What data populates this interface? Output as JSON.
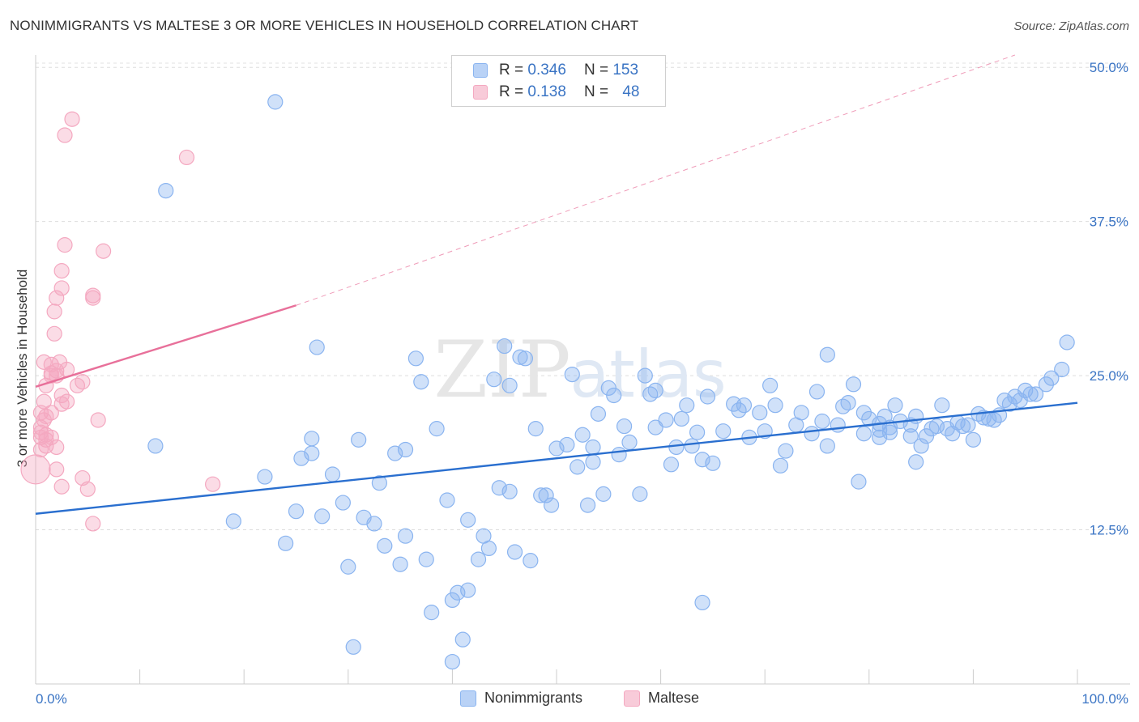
{
  "title": "NONIMMIGRANTS VS MALTESE 3 OR MORE VEHICLES IN HOUSEHOLD CORRELATION CHART",
  "source": "Source: ZipAtlas.com",
  "watermark": {
    "zip": "ZIP",
    "atlas": "atlas"
  },
  "legend": {
    "r_label": "R =",
    "n_label": "N =",
    "series": [
      {
        "name": "Nonimmigrants",
        "r": "0.346",
        "n": "153",
        "color": "#8ab4f0",
        "line_color": "#2a6fcf"
      },
      {
        "name": "Maltese",
        "r": "0.138",
        "n": "48",
        "color": "#f4a8c0",
        "line_color": "#e8709a"
      }
    ]
  },
  "chart_data": {
    "type": "scatter",
    "title": "NONIMMIGRANTS VS MALTESE 3 OR MORE VEHICLES IN HOUSEHOLD CORRELATION CHART",
    "xlabel": "",
    "ylabel": "3 or more Vehicles in Household",
    "xlim": [
      0,
      100
    ],
    "ylim": [
      0,
      51
    ],
    "x_tick_labels": [
      "0.0%",
      "100.0%"
    ],
    "y_ticks": [
      12.5,
      25.0,
      37.5,
      50.0
    ],
    "y_tick_labels": [
      "12.5%",
      "25.0%",
      "37.5%",
      "50.0%"
    ],
    "grid": true,
    "legend_position": "top-center",
    "series": [
      {
        "name": "Nonimmigrants",
        "trend": {
          "x": [
            0,
            100
          ],
          "y": [
            13.8,
            22.8
          ],
          "dashed": false
        },
        "points": [
          [
            23.0,
            47.2
          ],
          [
            12.5,
            40.0
          ],
          [
            11.5,
            19.3
          ],
          [
            19.0,
            13.2
          ],
          [
            22.0,
            16.8
          ],
          [
            24.0,
            11.4
          ],
          [
            25.0,
            14.0
          ],
          [
            25.5,
            18.3
          ],
          [
            26.5,
            18.7
          ],
          [
            26.5,
            19.9
          ],
          [
            27.0,
            27.3
          ],
          [
            27.5,
            13.6
          ],
          [
            28.5,
            17.0
          ],
          [
            29.5,
            14.7
          ],
          [
            30.0,
            9.5
          ],
          [
            30.5,
            3.0
          ],
          [
            31.0,
            19.8
          ],
          [
            31.5,
            13.5
          ],
          [
            32.5,
            13.0
          ],
          [
            33.0,
            16.3
          ],
          [
            33.5,
            11.2
          ],
          [
            34.5,
            18.7
          ],
          [
            35.0,
            9.7
          ],
          [
            35.5,
            19.0
          ],
          [
            35.5,
            12.0
          ],
          [
            36.5,
            26.4
          ],
          [
            37.0,
            24.5
          ],
          [
            37.5,
            10.1
          ],
          [
            38.0,
            5.8
          ],
          [
            38.5,
            20.7
          ],
          [
            39.5,
            14.9
          ],
          [
            40.0,
            6.8
          ],
          [
            40.5,
            7.4
          ],
          [
            41.0,
            3.6
          ],
          [
            41.5,
            13.3
          ],
          [
            41.5,
            7.6
          ],
          [
            40.0,
            1.8
          ],
          [
            42.5,
            10.1
          ],
          [
            43.0,
            12.0
          ],
          [
            43.5,
            11.0
          ],
          [
            44.0,
            24.7
          ],
          [
            44.5,
            15.9
          ],
          [
            45.0,
            27.4
          ],
          [
            45.5,
            15.6
          ],
          [
            45.5,
            24.2
          ],
          [
            46.0,
            10.7
          ],
          [
            46.5,
            26.5
          ],
          [
            47.0,
            26.4
          ],
          [
            47.5,
            10.0
          ],
          [
            48.0,
            20.7
          ],
          [
            48.5,
            15.3
          ],
          [
            49.0,
            15.3
          ],
          [
            49.5,
            14.5
          ],
          [
            50.0,
            19.1
          ],
          [
            51.0,
            19.4
          ],
          [
            51.5,
            25.1
          ],
          [
            52.0,
            17.6
          ],
          [
            52.5,
            20.2
          ],
          [
            53.0,
            14.5
          ],
          [
            53.5,
            19.2
          ],
          [
            53.5,
            18.0
          ],
          [
            54.0,
            21.9
          ],
          [
            54.5,
            15.4
          ],
          [
            55.0,
            24.0
          ],
          [
            55.5,
            23.4
          ],
          [
            56.0,
            18.6
          ],
          [
            56.5,
            20.9
          ],
          [
            57.0,
            19.6
          ],
          [
            58.0,
            15.4
          ],
          [
            58.5,
            25.0
          ],
          [
            59.0,
            23.5
          ],
          [
            59.5,
            20.8
          ],
          [
            59.5,
            23.8
          ],
          [
            60.5,
            21.4
          ],
          [
            61.0,
            17.8
          ],
          [
            61.5,
            19.2
          ],
          [
            62.0,
            21.5
          ],
          [
            62.5,
            22.6
          ],
          [
            63.0,
            19.3
          ],
          [
            63.5,
            20.4
          ],
          [
            64.0,
            18.2
          ],
          [
            64.5,
            23.3
          ],
          [
            64.0,
            6.6
          ],
          [
            65.0,
            17.9
          ],
          [
            66.0,
            20.5
          ],
          [
            67.0,
            22.7
          ],
          [
            67.5,
            22.2
          ],
          [
            68.0,
            22.6
          ],
          [
            68.5,
            20.0
          ],
          [
            69.5,
            22.0
          ],
          [
            70.0,
            20.5
          ],
          [
            70.5,
            24.2
          ],
          [
            71.0,
            22.6
          ],
          [
            71.5,
            17.7
          ],
          [
            72.0,
            18.9
          ],
          [
            73.0,
            21.0
          ],
          [
            73.5,
            22.0
          ],
          [
            74.5,
            20.3
          ],
          [
            75.0,
            23.7
          ],
          [
            75.5,
            21.3
          ],
          [
            76.0,
            19.3
          ],
          [
            76.0,
            26.7
          ],
          [
            77.0,
            21.0
          ],
          [
            77.5,
            22.5
          ],
          [
            78.0,
            22.8
          ],
          [
            78.5,
            24.3
          ],
          [
            79.0,
            16.4
          ],
          [
            79.5,
            22.0
          ],
          [
            79.5,
            20.3
          ],
          [
            80.0,
            21.5
          ],
          [
            81.0,
            20.6
          ],
          [
            81.0,
            20.0
          ],
          [
            81.5,
            21.7
          ],
          [
            82.0,
            20.8
          ],
          [
            82.5,
            22.6
          ],
          [
            83.0,
            21.3
          ],
          [
            84.0,
            20.1
          ],
          [
            84.5,
            21.7
          ],
          [
            84.5,
            18.0
          ],
          [
            85.0,
            19.3
          ],
          [
            85.5,
            20.1
          ],
          [
            86.0,
            20.7
          ],
          [
            86.5,
            20.9
          ],
          [
            87.0,
            22.6
          ],
          [
            87.5,
            20.7
          ],
          [
            88.0,
            20.3
          ],
          [
            88.5,
            21.2
          ],
          [
            89.0,
            20.9
          ],
          [
            89.5,
            21.0
          ],
          [
            90.0,
            19.8
          ],
          [
            90.5,
            21.9
          ],
          [
            91.0,
            21.6
          ],
          [
            91.5,
            21.5
          ],
          [
            92.0,
            21.4
          ],
          [
            92.5,
            21.8
          ],
          [
            93.0,
            23.0
          ],
          [
            93.5,
            22.7
          ],
          [
            94.0,
            23.3
          ],
          [
            94.5,
            23.0
          ],
          [
            95.0,
            23.8
          ],
          [
            95.5,
            23.5
          ],
          [
            96.0,
            23.5
          ],
          [
            97.0,
            24.3
          ],
          [
            97.5,
            24.8
          ],
          [
            98.5,
            25.5
          ],
          [
            99.0,
            27.7
          ],
          [
            81.0,
            21.1
          ],
          [
            82.0,
            20.4
          ],
          [
            84.0,
            21.0
          ]
        ]
      },
      {
        "name": "Maltese",
        "trend": {
          "x": [
            0,
            25
          ],
          "y": [
            24.1,
            30.7
          ],
          "dashed": false,
          "extension": {
            "x": [
              25,
              94
            ],
            "y": [
              30.7,
              51.0
            ],
            "dashed": true
          }
        },
        "points": [
          [
            3.5,
            45.8
          ],
          [
            2.8,
            44.5
          ],
          [
            14.5,
            42.7
          ],
          [
            2.8,
            35.6
          ],
          [
            6.5,
            35.1
          ],
          [
            2.5,
            33.5
          ],
          [
            2.5,
            32.1
          ],
          [
            5.5,
            31.5
          ],
          [
            5.5,
            31.3
          ],
          [
            2.0,
            31.3
          ],
          [
            1.8,
            30.2
          ],
          [
            1.8,
            28.4
          ],
          [
            0.8,
            26.1
          ],
          [
            2.3,
            26.1
          ],
          [
            1.5,
            25.9
          ],
          [
            2.0,
            25.0
          ],
          [
            1.5,
            25.2
          ],
          [
            2.0,
            25.4
          ],
          [
            1.5,
            25.0
          ],
          [
            4.5,
            24.5
          ],
          [
            1.0,
            24.2
          ],
          [
            4.0,
            24.2
          ],
          [
            2.5,
            23.4
          ],
          [
            2.5,
            22.7
          ],
          [
            3.0,
            22.9
          ],
          [
            0.8,
            22.9
          ],
          [
            0.5,
            22.0
          ],
          [
            1.5,
            22.0
          ],
          [
            6.0,
            21.4
          ],
          [
            0.8,
            21.4
          ],
          [
            0.5,
            20.8
          ],
          [
            0.5,
            20.4
          ],
          [
            1.0,
            20.2
          ],
          [
            1.5,
            20.0
          ],
          [
            1.0,
            19.8
          ],
          [
            2.0,
            19.2
          ],
          [
            1.0,
            19.3
          ],
          [
            0.5,
            19.0
          ],
          [
            0.0,
            17.4
          ],
          [
            2.0,
            17.4
          ],
          [
            4.5,
            16.7
          ],
          [
            17.0,
            16.2
          ],
          [
            2.5,
            16.0
          ],
          [
            5.0,
            15.8
          ],
          [
            5.5,
            13.0
          ],
          [
            1.0,
            21.7
          ],
          [
            3.0,
            25.5
          ],
          [
            0.5,
            20.0
          ]
        ]
      }
    ]
  }
}
